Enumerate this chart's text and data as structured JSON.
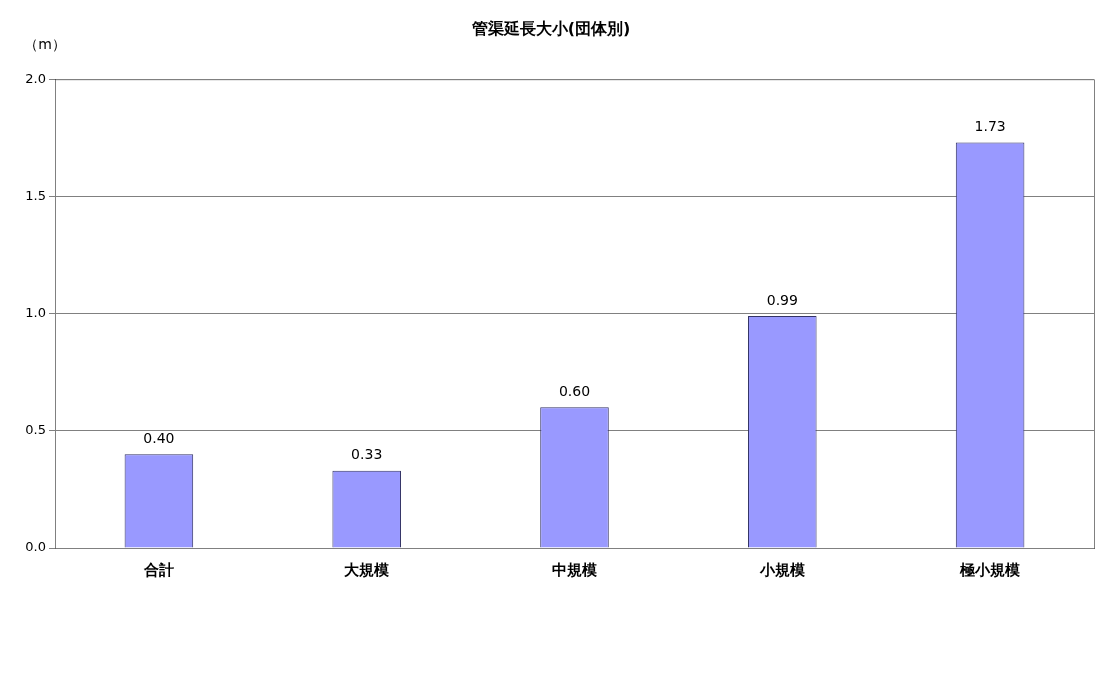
{
  "chart_data": {
    "type": "bar",
    "title": "管渠延長大小(団体別)",
    "ylabel": "（m）",
    "categories": [
      "合計",
      "大規模",
      "中規模",
      "小規模",
      "極小規模"
    ],
    "values": [
      0.4,
      0.33,
      0.6,
      0.99,
      1.73
    ],
    "color": "#9999ff",
    "ylim": [
      0,
      2
    ],
    "yticks": [
      {
        "value": 0,
        "label": "0.0"
      },
      0.5,
      {
        "value": 1,
        "label": "1.0"
      },
      1.5,
      {
        "value": 2,
        "label": "2.0"
      }
    ],
    "value_labels": [
      "0.40",
      "0.33",
      "0.60",
      "0.99",
      "1.73"
    ],
    "grid": "y",
    "legend": false
  }
}
